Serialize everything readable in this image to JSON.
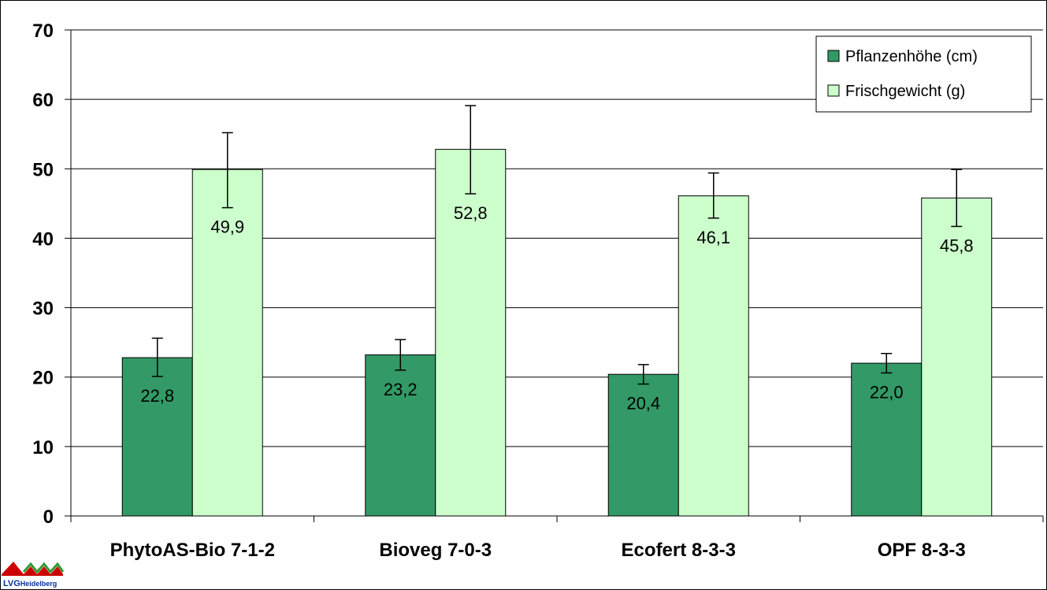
{
  "chart_data": {
    "type": "bar",
    "categories": [
      "PhytoAS-Bio 7-1-2",
      "Bioveg 7-0-3",
      "Ecofert 8-3-3",
      "OPF 8-3-3"
    ],
    "series": [
      {
        "name": "Pflanzenhöhe (cm)",
        "color": "#339966",
        "values": [
          22.8,
          23.2,
          20.4,
          22.0
        ],
        "labels": [
          "22,8",
          "23,2",
          "20,4",
          "22,0"
        ],
        "error_low": [
          20.1,
          21.0,
          19.0,
          20.6
        ],
        "error_high": [
          25.6,
          25.4,
          21.8,
          23.4
        ]
      },
      {
        "name": "Frischgewicht (g)",
        "color": "#ccffcc",
        "values": [
          49.9,
          52.8,
          46.1,
          45.8
        ],
        "labels": [
          "49,9",
          "52,8",
          "46,1",
          "45,8"
        ],
        "error_low": [
          44.4,
          46.4,
          42.9,
          41.7
        ],
        "error_high": [
          55.2,
          59.1,
          49.4,
          49.9
        ]
      }
    ],
    "ylim": [
      0,
      70
    ],
    "y_ticks": [
      "0",
      "10",
      "20",
      "30",
      "40",
      "50",
      "60",
      "70"
    ],
    "grid": "horizontal",
    "legend_position": "top-right",
    "title": "",
    "xlabel": "",
    "ylabel": ""
  },
  "logo": {
    "text_lvg": "LVG",
    "text_place": "Heidelberg",
    "color": "#cc0000"
  }
}
